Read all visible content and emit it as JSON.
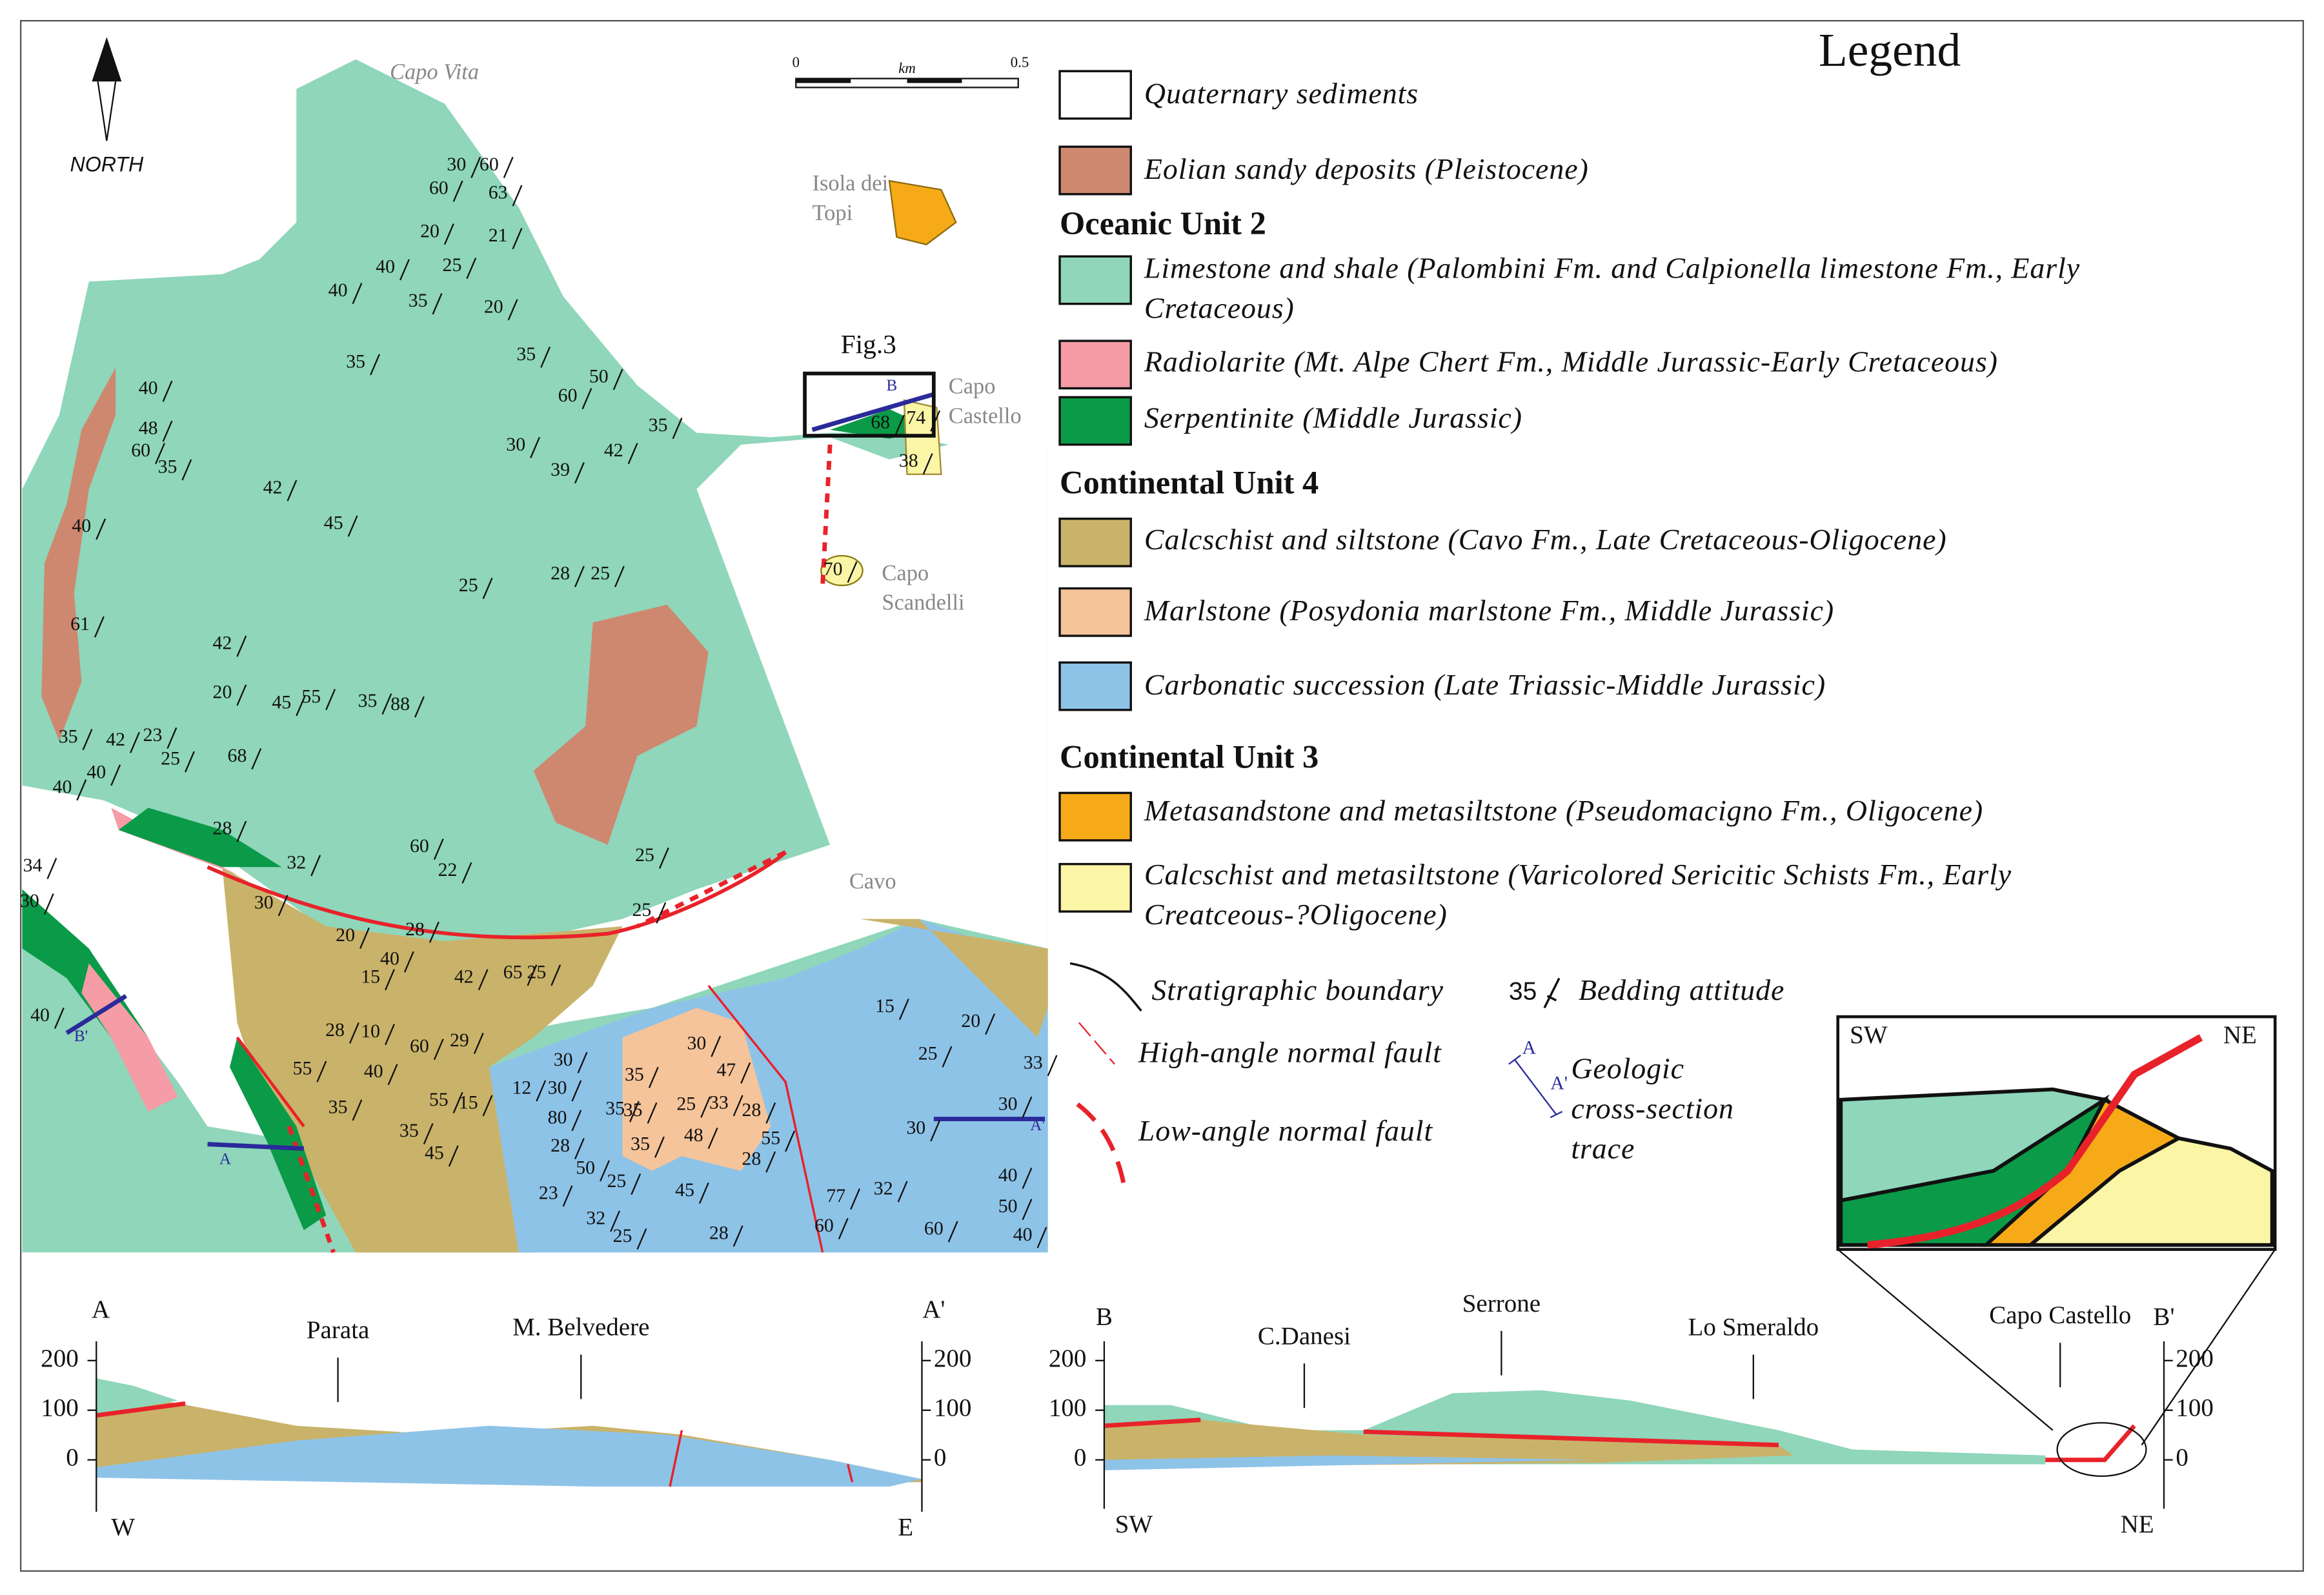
{
  "map": {
    "north_label": "NORTH",
    "scale": {
      "start": "0",
      "unit": "km",
      "end": "0.5"
    },
    "place_labels": [
      [
        "Capo Vita"
      ],
      [
        "Isola dei",
        "Topi"
      ],
      [
        "Capo",
        "Castello"
      ],
      [
        "Capo",
        "Scandelli"
      ],
      [
        "Cavo"
      ]
    ],
    "figure_box": "Fig.3",
    "section_traces": [
      "A",
      "A'",
      "B",
      "B'"
    ],
    "bedding_attitudes": [
      30,
      60,
      60,
      63,
      20,
      21,
      25,
      40,
      20,
      40,
      35,
      35,
      35,
      50,
      60,
      35,
      30,
      42,
      39,
      40,
      48,
      60,
      35,
      42,
      45,
      40,
      25,
      28,
      25,
      42,
      20,
      45,
      55,
      35,
      88,
      35,
      42,
      23,
      25,
      40,
      68,
      28,
      32,
      30,
      60,
      22,
      25,
      25,
      20,
      28,
      40,
      15,
      42,
      65,
      25,
      28,
      10,
      55,
      40,
      60,
      29,
      35,
      55,
      15,
      35,
      45,
      12,
      30,
      30,
      80,
      28,
      50,
      35,
      35,
      35,
      25,
      48,
      30,
      47,
      33,
      28,
      55,
      28,
      35,
      25,
      32,
      25,
      45,
      28,
      23,
      77,
      32,
      60,
      60,
      15,
      25,
      30,
      20,
      33,
      30,
      40,
      50,
      40,
      68,
      74,
      38,
      70,
      34,
      30,
      40,
      61,
      40
    ]
  },
  "legend": {
    "title": "Legend",
    "items": [
      {
        "label": [
          "Quaternary sediments"
        ],
        "color": "#ffffff"
      },
      {
        "label": [
          "Eolian sandy deposits (Pleistocene)"
        ],
        "color": "#cf8870"
      }
    ],
    "groups": [
      {
        "heading": "Oceanic Unit 2",
        "items": [
          {
            "label": [
              "Limestone and shale (Palombini Fm. and Calpionella limestone Fm., Early",
              "Cretaceous)"
            ],
            "color": "#8fd6bb"
          },
          {
            "label": [
              "Radiolarite (Mt. Alpe Chert  Fm., Middle Jurassic-Early Cretaceous)"
            ],
            "color": "#f59ca6"
          },
          {
            "label": [
              "Serpentinite (Middle Jurassic)"
            ],
            "color": "#0b9a48"
          }
        ]
      },
      {
        "heading": "Continental Unit 4",
        "items": [
          {
            "label": [
              "Calcschist and siltstone (Cavo Fm., Late Cretaceous-Oligocene)"
            ],
            "color": "#c9b36a"
          },
          {
            "label": [
              "Marlstone (Posydonia marlstone Fm., Middle Jurassic)"
            ],
            "color": "#f6c49a"
          },
          {
            "label": [
              "Carbonatic succession (Late Triassic-Middle Jurassic)"
            ],
            "color": "#8ec3e8"
          }
        ]
      },
      {
        "heading": "Continental Unit 3",
        "items": [
          {
            "label": [
              "Metasandstone and  metasiltstone (Pseudomacigno Fm., Oligocene)"
            ],
            "color": "#f6aa18"
          },
          {
            "label": [
              "Calcschist and metasiltstone (Varicolored Sericitic Schists Fm., Early",
              "Creatceous-?Oligocene)"
            ],
            "color": "#fbf5a6"
          }
        ]
      }
    ],
    "symbols": {
      "stratigraphic_boundary": "Stratigraphic boundary",
      "bedding_example": "35",
      "bedding_attitude": "Bedding attitude",
      "high_angle_fault": "High-angle normal fault",
      "low_angle_fault": "Low-angle normal fault",
      "trace_start": "A",
      "trace_end": "A'",
      "cross_section_trace": [
        "Geologic",
        "cross-section",
        "trace"
      ]
    }
  },
  "inset": {
    "left": "SW",
    "right": "NE"
  },
  "sections": [
    {
      "start": "A",
      "end": "A'",
      "left_dir": "W",
      "right_dir": "E",
      "labels": [
        "Parata",
        "M. Belvedere"
      ],
      "yticks": [
        0,
        100,
        200
      ]
    },
    {
      "start": "B",
      "end": "B'",
      "left_dir": "SW",
      "right_dir": "NE",
      "labels": [
        "C.Danesi",
        "Serrone",
        "Lo Smeraldo",
        "Capo Castello"
      ],
      "yticks": [
        0,
        100,
        200
      ]
    }
  ]
}
